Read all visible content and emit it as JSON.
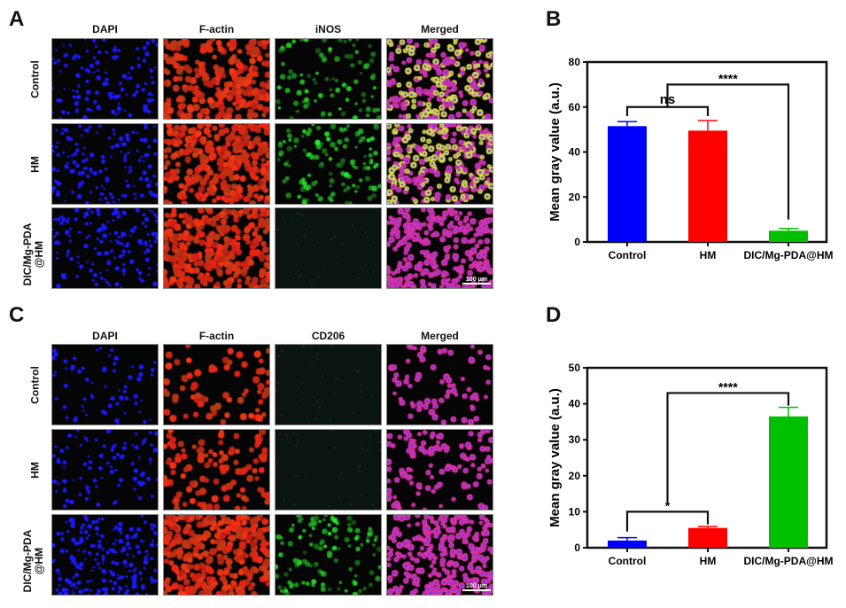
{
  "panel_labels": {
    "a": "A",
    "b": "B",
    "c": "C",
    "d": "D"
  },
  "panel_a": {
    "columns": [
      "DAPI",
      "F-actin",
      "iNOS",
      "Merged"
    ],
    "rows": [
      "Control",
      "HM",
      "DIC/Mg-PDA\n@HM"
    ],
    "scale_bar": "100 μm"
  },
  "panel_c": {
    "columns": [
      "DAPI",
      "F-actin",
      "CD206",
      "Merged"
    ],
    "rows": [
      "Control",
      "HM",
      "DIC/Mg-PDA\n@HM"
    ],
    "scale_bar": "100 μm"
  },
  "chart_data": [
    {
      "id": "B",
      "type": "bar",
      "categories": [
        "Control",
        "HM",
        "DIC/Mg-PDA@HM"
      ],
      "values": [
        51.5,
        49.5,
        5
      ],
      "errors": [
        2,
        4.5,
        1
      ],
      "colors": [
        "#0000ff",
        "#ff0000",
        "#00c000"
      ],
      "ylabel": "Mean gray value (a.u.)",
      "ylim": [
        0,
        80
      ],
      "yticks": [
        0,
        20,
        40,
        60,
        80
      ],
      "significance": [
        {
          "from": 0,
          "to": 1,
          "label": "ns",
          "level": 60,
          "legs": [
            56,
            56
          ]
        },
        {
          "from": 0.5,
          "to": 2,
          "label": "****",
          "level": 70,
          "legs": [
            60,
            10
          ]
        }
      ]
    },
    {
      "id": "D",
      "type": "bar",
      "categories": [
        "Control",
        "HM",
        "DIC/Mg-PDA@HM"
      ],
      "values": [
        2,
        5.5,
        36.5
      ],
      "errors": [
        0.8,
        0.4,
        2.5
      ],
      "colors": [
        "#0000ff",
        "#ff0000",
        "#00c000"
      ],
      "ylabel": "Mean gray value (a.u.)",
      "ylim": [
        0,
        50
      ],
      "yticks": [
        0,
        10,
        20,
        30,
        40,
        50
      ],
      "significance": [
        {
          "from": 0,
          "to": 1,
          "label": "*",
          "level": 10,
          "legs": [
            4.5,
            6.5
          ]
        },
        {
          "from": 0.5,
          "to": 2,
          "label": "****",
          "level": 43,
          "legs": [
            12,
            39.5
          ]
        }
      ]
    }
  ]
}
